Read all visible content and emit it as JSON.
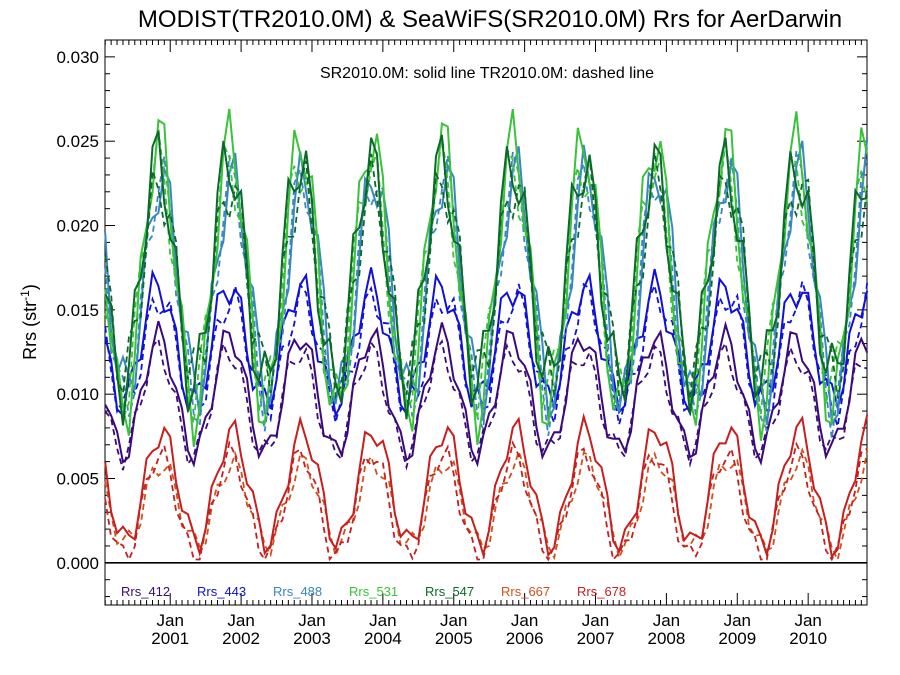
{
  "chart_data": {
    "type": "line",
    "title": "MODIST(TR2010.0M) & SeaWiFS(SR2010.0M)  Rrs for AerDarwin",
    "annotation": "SR2010.0M: solid line   TR2010.0M: dashed line",
    "ylabel": "Rrs (str",
    "ylabel_sup": "-1",
    "ylabel_close": ")",
    "ylim": [
      -0.0025,
      0.031
    ],
    "xlim": [
      2000.08,
      2010.83
    ],
    "yticks": [
      "0.000",
      "0.005",
      "0.010",
      "0.015",
      "0.020",
      "0.025",
      "0.030"
    ],
    "yticks_values": [
      0.0,
      0.005,
      0.01,
      0.015,
      0.02,
      0.025,
      0.03
    ],
    "xticks": [
      {
        "value": 2001.0,
        "month": "Jan",
        "year": "2001"
      },
      {
        "value": 2002.0,
        "month": "Jan",
        "year": "2002"
      },
      {
        "value": 2003.0,
        "month": "Jan",
        "year": "2003"
      },
      {
        "value": 2004.0,
        "month": "Jan",
        "year": "2004"
      },
      {
        "value": 2005.0,
        "month": "Jan",
        "year": "2005"
      },
      {
        "value": 2006.0,
        "month": "Jan",
        "year": "2006"
      },
      {
        "value": 2007.0,
        "month": "Jan",
        "year": "2007"
      },
      {
        "value": 2008.0,
        "month": "Jan",
        "year": "2008"
      },
      {
        "value": 2009.0,
        "month": "Jan",
        "year": "2009"
      },
      {
        "value": 2010.0,
        "month": "Jan",
        "year": "2010"
      }
    ],
    "zero_line": 0.0,
    "legend_position": "bottom-left",
    "series": [
      {
        "name": "Rrs_412",
        "color": "#3b0a7a",
        "kind": "solid",
        "amp": 0.003,
        "base": 0.01
      },
      {
        "name": "Rrs_412",
        "color": "#3b0a7a",
        "kind": "dashed",
        "amp": 0.003,
        "base": 0.0095
      },
      {
        "name": "Rrs_443",
        "color": "#1010d8",
        "kind": "solid",
        "amp": 0.004,
        "base": 0.013
      },
      {
        "name": "Rrs_443",
        "color": "#1010d8",
        "kind": "dashed",
        "amp": 0.0038,
        "base": 0.0125
      },
      {
        "name": "Rrs_488",
        "color": "#3a87c0",
        "kind": "solid",
        "amp": 0.0065,
        "base": 0.0165
      },
      {
        "name": "Rrs_488",
        "color": "#3a87c0",
        "kind": "dashed",
        "amp": 0.006,
        "base": 0.016
      },
      {
        "name": "Rrs_531",
        "color": "#3ac23a",
        "kind": "solid",
        "amp": 0.007,
        "base": 0.017
      },
      {
        "name": "Rrs_531",
        "color": "#3ac23a",
        "kind": "dashed",
        "amp": 0.0065,
        "base": 0.0168
      },
      {
        "name": "Rrs_547",
        "color": "#0a6a2a",
        "kind": "solid",
        "amp": 0.0075,
        "base": 0.0172
      },
      {
        "name": "Rrs_547",
        "color": "#0a6a2a",
        "kind": "dashed",
        "amp": 0.0068,
        "base": 0.0168
      },
      {
        "name": "Rrs_667",
        "color": "#d2501a",
        "kind": "dashed",
        "amp": 0.0026,
        "base": 0.0035
      },
      {
        "name": "Rrs_678",
        "color": "#c81e1e",
        "kind": "solid",
        "amp": 0.003,
        "base": 0.0045
      },
      {
        "name": "Rrs_678",
        "color": "#c81e1e",
        "kind": "dashed",
        "amp": 0.0026,
        "base": 0.0034
      }
    ],
    "legend": [
      {
        "label": "Rrs_412",
        "color": "#3b0a7a"
      },
      {
        "label": "Rrs_443",
        "color": "#1010d8"
      },
      {
        "label": "Rrs_488",
        "color": "#3a87c0"
      },
      {
        "label": "Rrs_531",
        "color": "#3ac23a"
      },
      {
        "label": "Rrs_547",
        "color": "#0a6a2a"
      },
      {
        "label": "Rrs_667",
        "color": "#d2501a"
      },
      {
        "label": "Rrs_678",
        "color": "#c81e1e"
      }
    ]
  }
}
